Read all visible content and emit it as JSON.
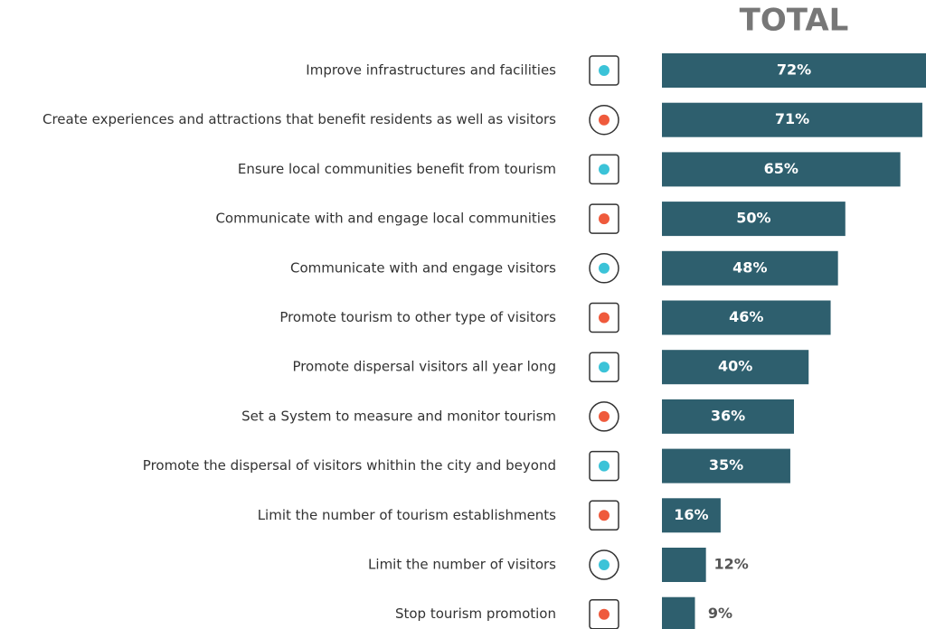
{
  "chart_data": {
    "type": "bar",
    "orientation": "horizontal",
    "title": "TOTAL",
    "categories": [
      "Improve infrastructures and facilities",
      "Create experiences and attractions that benefit residents as well as visitors",
      "Ensure local communities benefit from tourism",
      "Communicate with and engage local communities",
      "Communicate with and engage visitors",
      "Promote tourism to other type of visitors",
      "Promote dispersal visitors all year long",
      "Set a System to measure and monitor tourism",
      "Promote the dispersal of visitors whithin the city and beyond",
      "Limit the number of tourism establishments",
      "Limit the number of visitors",
      "Stop tourism promotion"
    ],
    "values": [
      72,
      71,
      65,
      50,
      48,
      46,
      40,
      36,
      35,
      16,
      12,
      9
    ],
    "value_labels": [
      "72%",
      "71%",
      "65%",
      "50%",
      "48%",
      "46%",
      "40%",
      "36%",
      "35%",
      "16%",
      "12%",
      "9%"
    ],
    "color": "#2e5f6e",
    "xlim": [
      0,
      72
    ]
  }
}
